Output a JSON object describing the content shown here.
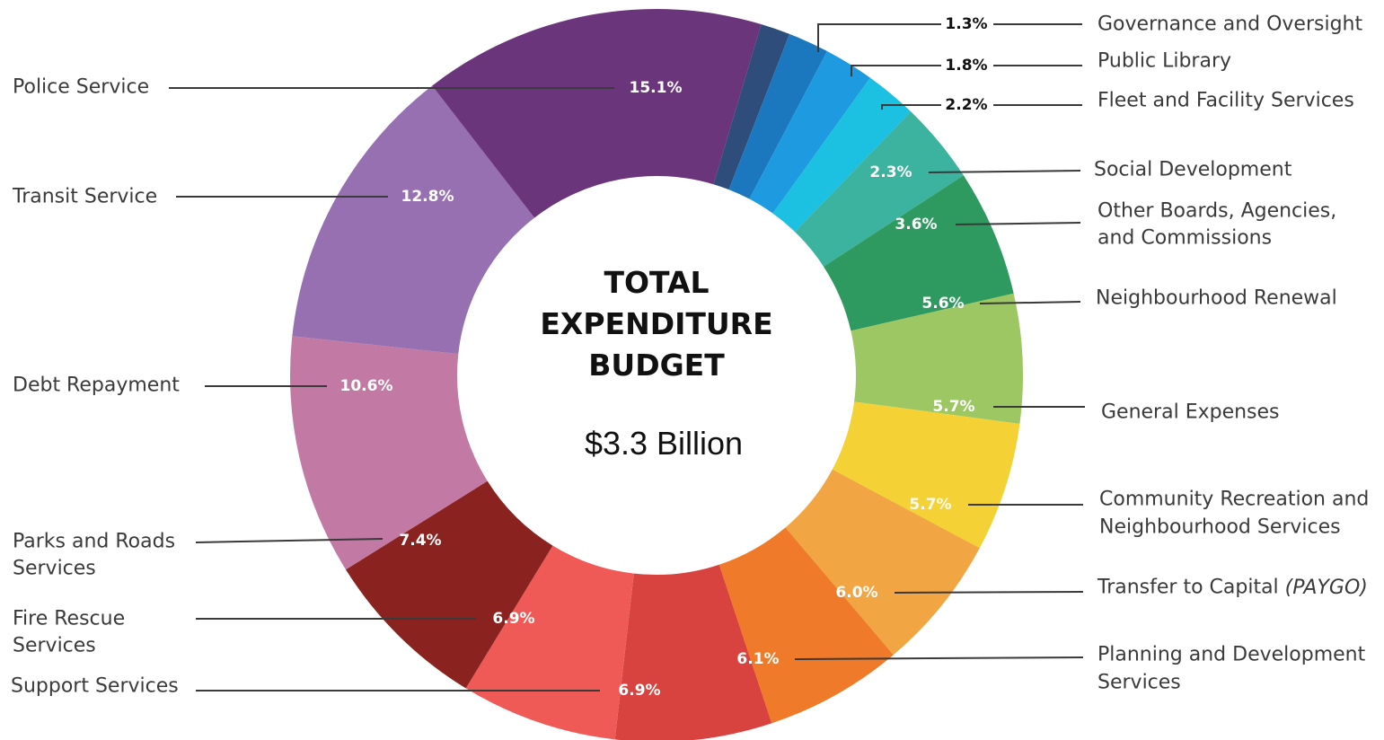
{
  "chart_data": {
    "type": "pie",
    "title_lines": [
      "TOTAL",
      "EXPENDITURE",
      "BUDGET"
    ],
    "total": "$3.3 Billion",
    "slices": [
      {
        "label": "Governance and Oversight",
        "value": 1.3,
        "pct_label": "1.3%",
        "color": "#2e4d7b"
      },
      {
        "label": "Public Library",
        "value": 1.8,
        "pct_label": "1.8%",
        "color": "#1b78bf"
      },
      {
        "label": "Fleet and Facility Services",
        "value": 2.2,
        "pct_label": "2.2%",
        "color": "#1e9be0"
      },
      {
        "label": "Social Development",
        "value": 2.3,
        "pct_label": "2.3%",
        "color": "#1cc0e0"
      },
      {
        "label": "Other Boards, Agencies, and Commissions",
        "value": 3.6,
        "pct_label": "3.6%",
        "color": "#3cb39e"
      },
      {
        "label": "Neighbourhood Renewal",
        "value": 5.6,
        "pct_label": "5.6%",
        "color": "#2e9a5f"
      },
      {
        "label": "General Expenses",
        "value": 5.7,
        "pct_label": "5.7%",
        "color": "#9cc763"
      },
      {
        "label": "Community Recreation and Neighbourhood Services",
        "value": 5.7,
        "pct_label": "5.7%",
        "color": "#f4d236"
      },
      {
        "label": "Transfer to Capital",
        "label_suffix": "(PAYGO)",
        "value": 6.0,
        "pct_label": "6.0%",
        "color": "#f2a543"
      },
      {
        "label": "Planning and Development Services",
        "value": 6.1,
        "pct_label": "6.1%",
        "color": "#ef7b2a"
      },
      {
        "label": "Support Services",
        "value": 6.9,
        "pct_label": "6.9%",
        "color": "#d9433f"
      },
      {
        "label": "Fire Rescue Services",
        "value": 6.9,
        "pct_label": "6.9%",
        "color": "#ef5a57"
      },
      {
        "label": "Parks and Roads Services",
        "value": 7.4,
        "pct_label": "7.4%",
        "color": "#8a2320"
      },
      {
        "label": "Debt Repayment",
        "value": 10.6,
        "pct_label": "10.6%",
        "color": "#c27aa4"
      },
      {
        "label": "Transit Service",
        "value": 12.8,
        "pct_label": "12.8%",
        "color": "#9670b0"
      },
      {
        "label": "Police Service",
        "value": 15.1,
        "pct_label": "15.1%",
        "color": "#6b357b"
      }
    ]
  }
}
